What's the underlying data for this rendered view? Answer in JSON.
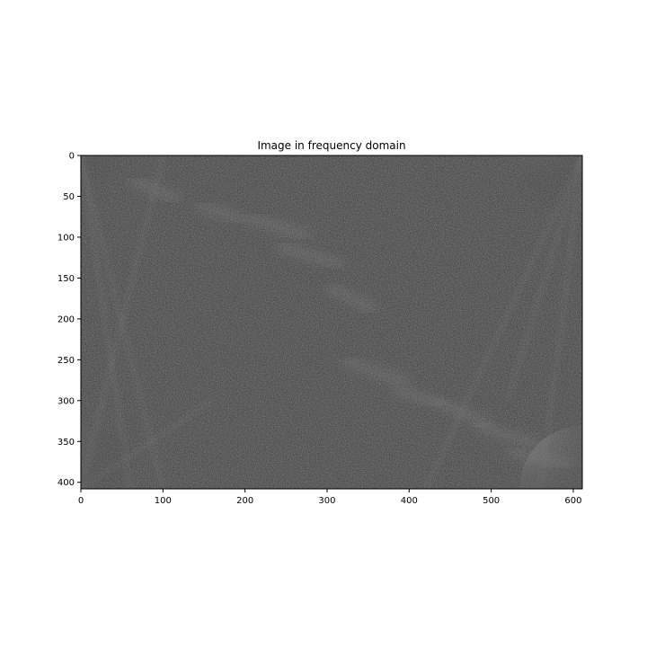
{
  "chart_data": {
    "type": "heatmap",
    "title": "Image in frequency domain",
    "xlabel": "",
    "ylabel": "",
    "colormap": "gray",
    "image_size": [
      611,
      408
    ],
    "xlim": [
      0,
      611
    ],
    "ylim": [
      408,
      0
    ],
    "x_ticks": [
      0,
      100,
      200,
      300,
      400,
      500,
      600
    ],
    "y_ticks": [
      0,
      50,
      100,
      150,
      200,
      250,
      300,
      350,
      400
    ],
    "grid": false,
    "legend": "none",
    "colors": {
      "base_gray": "#3a3a3a",
      "bright_streak": "#7a7a7a",
      "corner_highlight": "#b0b0b0"
    }
  }
}
